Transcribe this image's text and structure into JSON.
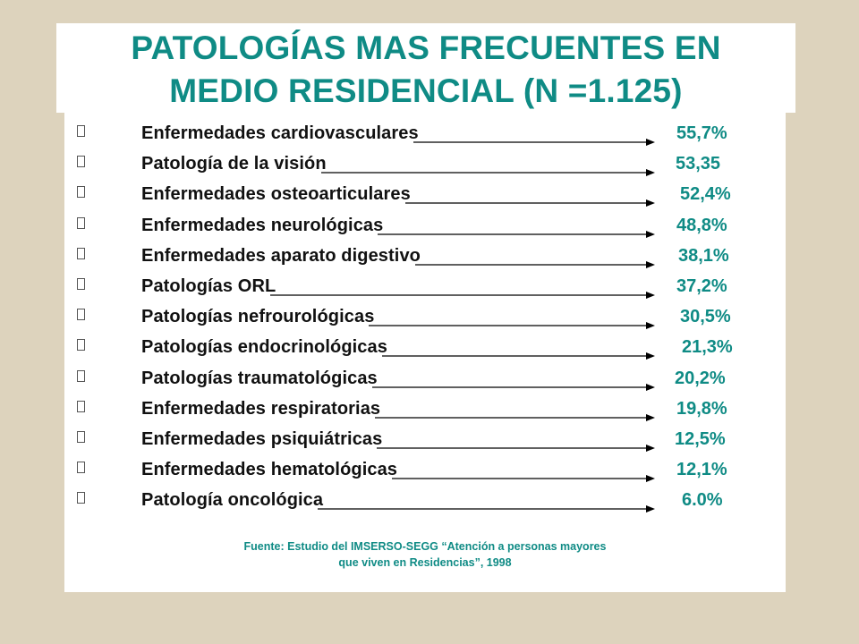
{
  "title_line1": "PATOLOGÍAS MAS FRECUENTES EN",
  "title_line2": "MEDIO RESIDENCIAL (N =1.125)",
  "colors": {
    "accent": "#0f8b85",
    "background": "#ddd3bd",
    "text": "#111111"
  },
  "bullet_icon": "empty-square-bullet",
  "items": [
    {
      "label": "Enfermedades cardiovasculares",
      "value": "55,7%"
    },
    {
      "label": "Patología de la visión",
      "value": "53,35"
    },
    {
      "label": "Enfermedades osteoarticulares",
      "value": "52,4%"
    },
    {
      "label": "Enfermedades neurológicas",
      "value": "48,8%"
    },
    {
      "label": "Enfermedades aparato digestivo",
      "value": "38,1%"
    },
    {
      "label": "Patologías ORL",
      "value": "37,2%"
    },
    {
      "label": "Patologías nefrourológicas",
      "value": "30,5%"
    },
    {
      "label": "Patologías endocrinológicas",
      "value": "21,3%"
    },
    {
      "label": "Patologías traumatológicas",
      "value": "20,2%"
    },
    {
      "label": "Enfermedades respiratorias",
      "value": "19,8%"
    },
    {
      "label": "Enfermedades psiquiátricas",
      "value": "12,5%"
    },
    {
      "label": "Enfermedades hematológicas",
      "value": "12,1%"
    },
    {
      "label": "Patología oncológica",
      "value": "6.0%"
    }
  ],
  "source_line1": "Fuente: Estudio del IMSERSO-SEGG “Atención a personas mayores",
  "source_line2": "que viven en Residencias”, 1998"
}
